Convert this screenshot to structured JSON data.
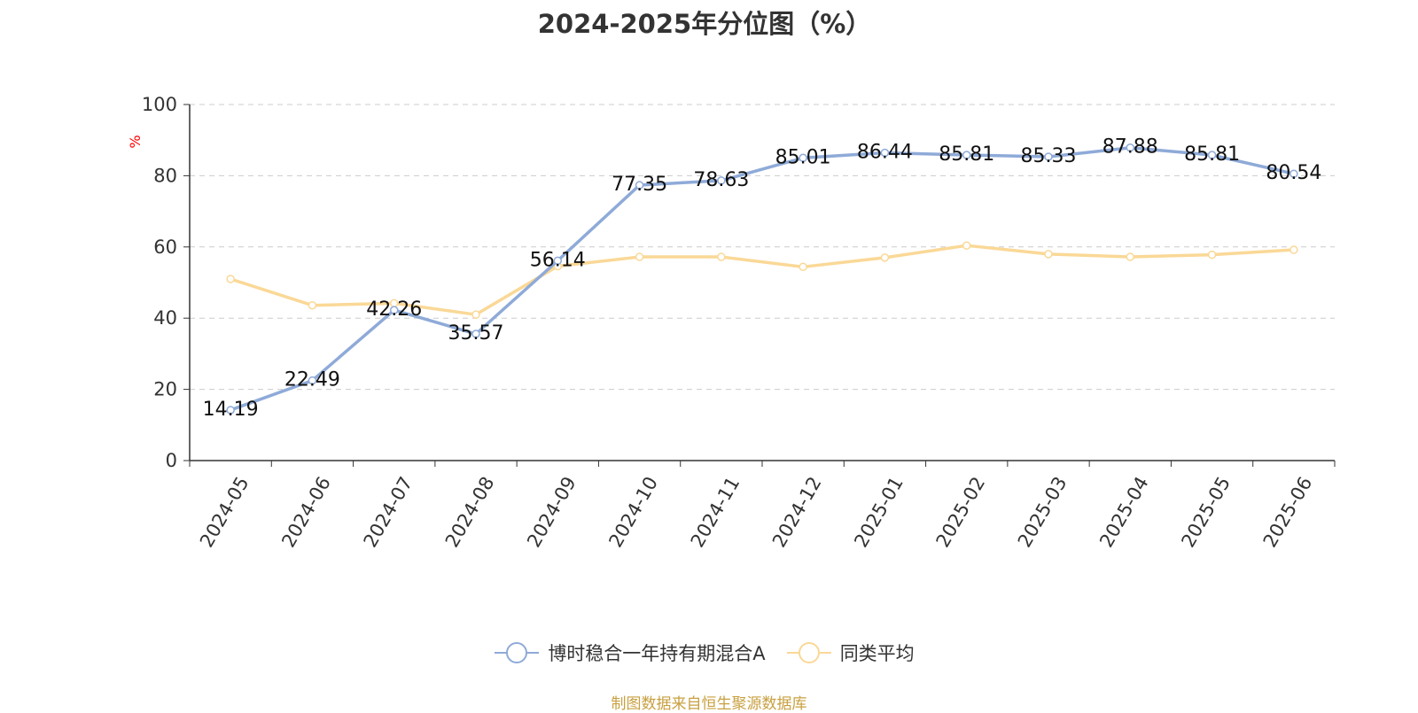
{
  "chart_data": {
    "type": "line",
    "title": "2024-2025年分位图（%）",
    "ylabel": "%",
    "xlabel": "",
    "ylim": [
      0,
      100
    ],
    "yticks": [
      0,
      20,
      40,
      60,
      80,
      100
    ],
    "grid": true,
    "legend_position": "bottom",
    "categories": [
      "2024-05",
      "2024-06",
      "2024-07",
      "2024-08",
      "2024-09",
      "2024-10",
      "2024-11",
      "2024-12",
      "2025-01",
      "2025-02",
      "2025-03",
      "2025-04",
      "2025-05",
      "2025-06"
    ],
    "series": [
      {
        "name": "博时稳合一年持有期混合A",
        "color": "#8eaad8",
        "values": [
          14.19,
          22.49,
          42.26,
          35.57,
          56.14,
          77.35,
          78.63,
          85.01,
          86.44,
          85.81,
          85.33,
          87.88,
          85.81,
          80.54
        ],
        "labels": [
          "14.19",
          "22.49",
          "42.26",
          "35.57",
          "56.14",
          "77.35",
          "78.63",
          "85.01",
          "86.44",
          "85.81",
          "85.33",
          "87.88",
          "85.81",
          "80.54"
        ],
        "show_labels": true
      },
      {
        "name": "同类平均",
        "color": "#fad896",
        "values": [
          51.0,
          43.6,
          44.2,
          41.0,
          54.6,
          57.2,
          57.2,
          54.4,
          57.0,
          60.4,
          58.0,
          57.2,
          57.8,
          59.2
        ],
        "show_labels": false
      }
    ]
  },
  "footer": {
    "source": "制图数据来自恒生聚源数据库"
  },
  "colors": {
    "axis": "#333333",
    "grid": "#cccccc",
    "ylabel": "#ff0000",
    "source": "#c8a040"
  }
}
